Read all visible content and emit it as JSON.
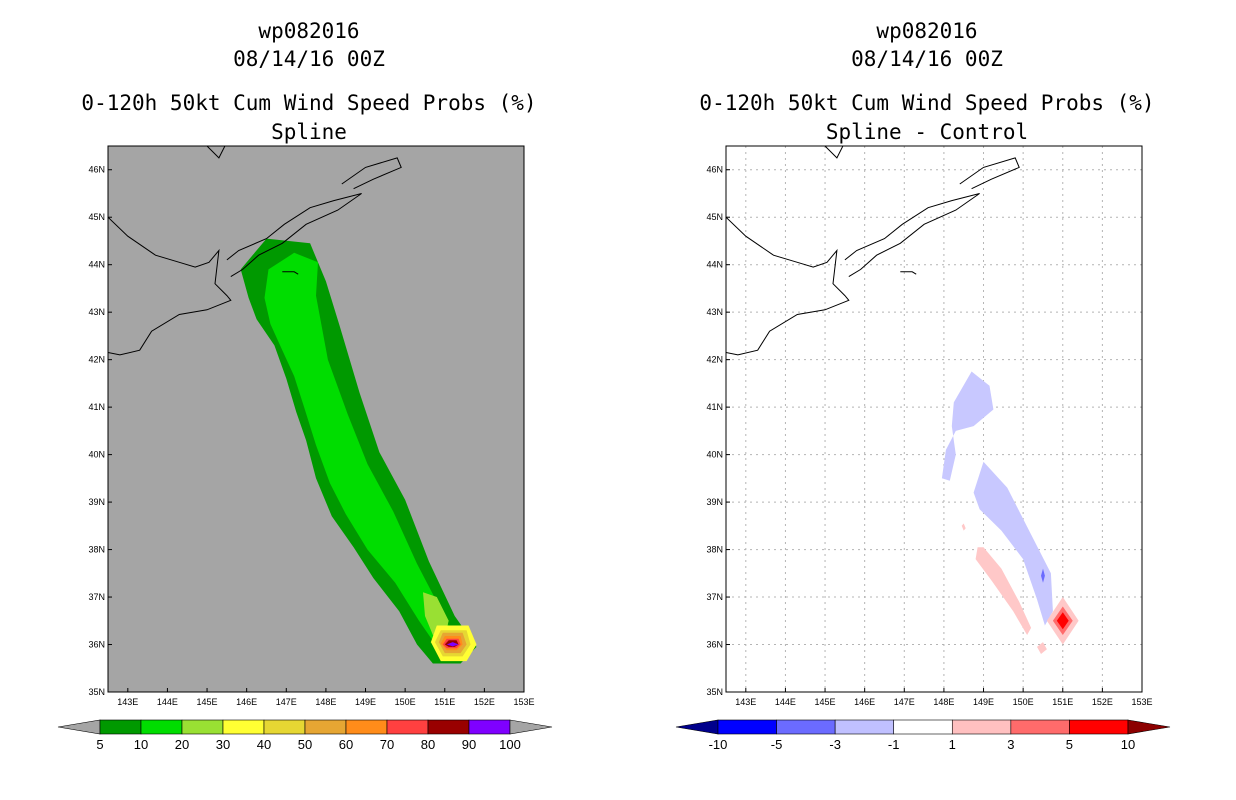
{
  "chart_data": [
    {
      "type": "contour-map",
      "title": {
        "storm": "wp082016",
        "date": "08/14/16 00Z",
        "product": "0-120h 50kt Cum Wind Speed Probs (%)",
        "subtitle": "Spline"
      },
      "xlabel": "",
      "ylabel": "",
      "xlim": [
        142.5,
        153
      ],
      "ylim": [
        35,
        46.5
      ],
      "x_ticks": [
        "143E",
        "144E",
        "145E",
        "146E",
        "147E",
        "148E",
        "149E",
        "150E",
        "151E",
        "152E",
        "153E"
      ],
      "y_ticks": [
        "35N",
        "36N",
        "37N",
        "38N",
        "39N",
        "40N",
        "41N",
        "42N",
        "43N",
        "44N",
        "45N",
        "46N"
      ],
      "background": "#a5a5a5",
      "grid": false,
      "colorbar": {
        "levels": [
          "5",
          "10",
          "20",
          "30",
          "40",
          "50",
          "60",
          "70",
          "80",
          "90",
          "100"
        ],
        "colors": [
          "#009900",
          "#00dd00",
          "#99e033",
          "#ffff33",
          "#e6d733",
          "#e6a633",
          "#ff8c1a",
          "#ff4040",
          "#990000",
          "#7f00ff"
        ],
        "extend_low": "#a5a5a5",
        "extend_high": "#a5a5a5"
      },
      "fields": [
        {
          "level": "5-10",
          "color": "#009900",
          "polygon_lonlat": [
            [
              145.85,
              43.9
            ],
            [
              146.5,
              44.55
            ],
            [
              147.6,
              44.45
            ],
            [
              148.0,
              43.65
            ],
            [
              148.35,
              42.7
            ],
            [
              148.85,
              41.3
            ],
            [
              149.35,
              40.05
            ],
            [
              150.0,
              39.05
            ],
            [
              150.6,
              37.75
            ],
            [
              151.25,
              36.6
            ],
            [
              151.8,
              35.95
            ],
            [
              151.4,
              35.6
            ],
            [
              150.7,
              35.6
            ],
            [
              150.3,
              36.0
            ],
            [
              149.85,
              36.7
            ],
            [
              149.2,
              37.4
            ],
            [
              148.7,
              38.05
            ],
            [
              148.15,
              38.7
            ],
            [
              147.75,
              39.5
            ],
            [
              147.5,
              40.3
            ],
            [
              147.25,
              40.9
            ],
            [
              147.0,
              41.6
            ],
            [
              146.7,
              42.3
            ],
            [
              146.25,
              42.85
            ],
            [
              146.05,
              43.3
            ]
          ]
        },
        {
          "level": "10-20",
          "color": "#00dd00",
          "polygon_lonlat": [
            [
              146.55,
              43.9
            ],
            [
              147.2,
              44.25
            ],
            [
              147.8,
              44.05
            ],
            [
              147.75,
              43.35
            ],
            [
              148.05,
              42.0
            ],
            [
              148.55,
              40.85
            ],
            [
              149.05,
              39.8
            ],
            [
              149.7,
              38.8
            ],
            [
              150.3,
              37.7
            ],
            [
              151.05,
              36.5
            ],
            [
              151.3,
              35.95
            ],
            [
              150.85,
              35.9
            ],
            [
              150.35,
              36.5
            ],
            [
              149.75,
              37.3
            ],
            [
              149.05,
              38.0
            ],
            [
              148.5,
              38.75
            ],
            [
              148.1,
              39.4
            ],
            [
              147.75,
              40.2
            ],
            [
              147.45,
              41.0
            ],
            [
              147.2,
              41.65
            ],
            [
              146.9,
              42.2
            ],
            [
              146.6,
              42.75
            ],
            [
              146.45,
              43.3
            ]
          ]
        },
        {
          "level": "20-30",
          "color": "#99e033",
          "polygon_lonlat": [
            [
              150.45,
              37.1
            ],
            [
              150.8,
              37.0
            ],
            [
              151.1,
              36.5
            ],
            [
              150.95,
              36.0
            ],
            [
              150.7,
              36.2
            ],
            [
              150.5,
              36.6
            ]
          ]
        },
        {
          "level": "30-40",
          "color": "#ffff33",
          "polygon_lonlat": [
            [
              150.65,
              36.05
            ],
            [
              150.8,
              36.4
            ],
            [
              151.6,
              36.4
            ],
            [
              151.8,
              36.0
            ],
            [
              151.55,
              35.65
            ],
            [
              150.9,
              35.65
            ]
          ]
        },
        {
          "level": "40-50",
          "color": "#e6d733",
          "polygon_lonlat": [
            [
              150.75,
              36.05
            ],
            [
              150.9,
              36.3
            ],
            [
              151.55,
              36.3
            ],
            [
              151.65,
              36.0
            ],
            [
              151.45,
              35.75
            ],
            [
              150.95,
              35.75
            ]
          ]
        },
        {
          "level": "50-60",
          "color": "#e6a633",
          "polygon_lonlat": [
            [
              150.85,
              36.05
            ],
            [
              150.95,
              36.25
            ],
            [
              151.45,
              36.25
            ],
            [
              151.55,
              36.0
            ],
            [
              151.4,
              35.82
            ],
            [
              151.0,
              35.82
            ]
          ]
        },
        {
          "level": "60-70",
          "color": "#ff8c1a",
          "polygon_lonlat": [
            [
              150.9,
              36.02
            ],
            [
              151.0,
              36.18
            ],
            [
              151.4,
              36.18
            ],
            [
              151.45,
              36.0
            ],
            [
              151.3,
              35.88
            ],
            [
              151.05,
              35.88
            ]
          ]
        },
        {
          "level": "70-80",
          "color": "#ff4040",
          "polygon_lonlat": [
            [
              150.95,
              36.0
            ],
            [
              151.05,
              36.12
            ],
            [
              151.35,
              36.12
            ],
            [
              151.4,
              36.0
            ],
            [
              151.3,
              35.92
            ],
            [
              151.05,
              35.92
            ]
          ]
        },
        {
          "level": "80-90",
          "color": "#990000",
          "polygon_lonlat": [
            [
              151.0,
              36.0
            ],
            [
              151.1,
              36.09
            ],
            [
              151.3,
              36.09
            ],
            [
              151.35,
              36.0
            ],
            [
              151.25,
              35.95
            ],
            [
              151.1,
              35.95
            ]
          ]
        },
        {
          "level": "90-100",
          "color": "#7f00ff",
          "polygon_lonlat": [
            [
              151.05,
              36.0
            ],
            [
              151.2,
              36.05
            ],
            [
              151.35,
              36.0
            ],
            [
              151.2,
              35.96
            ]
          ]
        }
      ]
    },
    {
      "type": "contour-map",
      "title": {
        "storm": "wp082016",
        "date": "08/14/16 00Z",
        "product": "0-120h 50kt Cum Wind Speed Probs (%)",
        "subtitle": "Spline - Control"
      },
      "xlabel": "",
      "ylabel": "",
      "xlim": [
        142.5,
        153
      ],
      "ylim": [
        35,
        46.5
      ],
      "x_ticks": [
        "143E",
        "144E",
        "145E",
        "146E",
        "147E",
        "148E",
        "149E",
        "150E",
        "151E",
        "152E",
        "153E"
      ],
      "y_ticks": [
        "35N",
        "36N",
        "37N",
        "38N",
        "39N",
        "40N",
        "41N",
        "42N",
        "43N",
        "44N",
        "45N",
        "46N"
      ],
      "background": "#ffffff",
      "grid": true,
      "colorbar": {
        "levels": [
          "-10",
          "-5",
          "-3",
          "-1",
          "1",
          "3",
          "5",
          "10"
        ],
        "colors": [
          "#0000ff",
          "#6b6bff",
          "#c0c0ff",
          "#ffffff",
          "#ffc0c0",
          "#ff6b6b",
          "#ff0000"
        ],
        "extend_low": "#00008c",
        "extend_high": "#8c0000"
      },
      "fields": [
        {
          "level": "-3 to -1",
          "color": "#c8c8ff",
          "polygon_lonlat": [
            [
              148.25,
              41.1
            ],
            [
              148.7,
              41.75
            ],
            [
              149.15,
              41.45
            ],
            [
              149.25,
              40.95
            ],
            [
              148.75,
              40.6
            ],
            [
              148.3,
              40.5
            ],
            [
              148.05,
              40.1
            ],
            [
              147.95,
              39.5
            ],
            [
              148.15,
              39.45
            ],
            [
              148.3,
              40.0
            ],
            [
              148.2,
              40.6
            ]
          ]
        },
        {
          "level": "-3 to -1",
          "color": "#c8c8ff",
          "polygon_lonlat": [
            [
              148.75,
              39.2
            ],
            [
              149.0,
              39.85
            ],
            [
              149.6,
              39.3
            ],
            [
              150.15,
              38.4
            ],
            [
              150.7,
              37.5
            ],
            [
              150.75,
              36.7
            ],
            [
              150.55,
              36.4
            ],
            [
              150.35,
              36.95
            ],
            [
              150.0,
              37.8
            ],
            [
              149.45,
              38.4
            ],
            [
              148.9,
              38.85
            ]
          ]
        },
        {
          "level": "-5 to -3",
          "color": "#6b6bff",
          "polygon_lonlat": [
            [
              150.45,
              37.45
            ],
            [
              150.5,
              37.6
            ],
            [
              150.55,
              37.45
            ],
            [
              150.5,
              37.3
            ]
          ]
        },
        {
          "level": "1 to 3",
          "color": "#ffc8c8",
          "polygon_lonlat": [
            [
              148.85,
              38.05
            ],
            [
              149.0,
              38.05
            ],
            [
              149.45,
              37.6
            ],
            [
              149.9,
              36.9
            ],
            [
              150.2,
              36.35
            ],
            [
              150.1,
              36.2
            ],
            [
              149.75,
              36.7
            ],
            [
              149.2,
              37.35
            ],
            [
              148.8,
              37.8
            ]
          ]
        },
        {
          "level": "1 to 3",
          "color": "#ffc8c8",
          "polygon_lonlat": [
            [
              150.35,
              35.95
            ],
            [
              150.5,
              36.05
            ],
            [
              150.6,
              35.9
            ],
            [
              150.45,
              35.8
            ]
          ]
        },
        {
          "level": "1 to 3",
          "color": "#ffc8c8",
          "polygon_lonlat": [
            [
              148.45,
              38.5
            ],
            [
              148.5,
              38.55
            ],
            [
              148.55,
              38.45
            ],
            [
              148.5,
              38.4
            ]
          ]
        },
        {
          "level": "1 to 3",
          "color": "#ffc8c8",
          "polygon_lonlat": [
            [
              150.6,
              36.5
            ],
            [
              151.0,
              37.0
            ],
            [
              151.4,
              36.5
            ],
            [
              151.0,
              36.0
            ]
          ]
        },
        {
          "level": "3 to 5",
          "color": "#ff6b6b",
          "polygon_lonlat": [
            [
              150.75,
              36.5
            ],
            [
              151.0,
              36.8
            ],
            [
              151.25,
              36.5
            ],
            [
              151.0,
              36.2
            ]
          ]
        },
        {
          "level": "5 to 10",
          "color": "#ff0000",
          "polygon_lonlat": [
            [
              150.85,
              36.5
            ],
            [
              151.0,
              36.68
            ],
            [
              151.15,
              36.5
            ],
            [
              151.0,
              36.32
            ]
          ]
        }
      ]
    }
  ],
  "coastlines_lonlat": [
    [
      [
        142.5,
        45.0
      ],
      [
        143.0,
        44.6
      ],
      [
        143.7,
        44.2
      ],
      [
        144.3,
        44.05
      ],
      [
        144.7,
        43.95
      ],
      [
        145.05,
        44.05
      ],
      [
        145.3,
        44.3
      ],
      [
        145.2,
        43.6
      ],
      [
        145.5,
        43.35
      ],
      [
        145.6,
        43.25
      ],
      [
        145.0,
        43.05
      ],
      [
        144.3,
        42.95
      ],
      [
        143.6,
        42.6
      ],
      [
        143.3,
        42.2
      ],
      [
        142.8,
        42.1
      ],
      [
        142.5,
        42.15
      ]
    ],
    [
      [
        145.5,
        44.1
      ],
      [
        145.8,
        44.3
      ],
      [
        146.5,
        44.55
      ],
      [
        146.95,
        44.85
      ],
      [
        147.6,
        45.2
      ],
      [
        148.2,
        45.35
      ],
      [
        148.9,
        45.5
      ],
      [
        148.3,
        45.15
      ],
      [
        147.5,
        44.85
      ],
      [
        146.9,
        44.45
      ],
      [
        146.3,
        44.2
      ],
      [
        145.9,
        43.9
      ],
      [
        145.6,
        43.75
      ]
    ],
    [
      [
        148.4,
        45.7
      ],
      [
        149.0,
        46.05
      ],
      [
        149.8,
        46.25
      ],
      [
        149.9,
        46.05
      ],
      [
        149.2,
        45.8
      ],
      [
        148.7,
        45.6
      ]
    ],
    [
      [
        146.9,
        43.85
      ],
      [
        147.2,
        43.85
      ],
      [
        147.3,
        43.8
      ]
    ],
    [
      [
        145.0,
        46.5
      ],
      [
        145.3,
        46.25
      ],
      [
        145.45,
        46.5
      ]
    ]
  ]
}
